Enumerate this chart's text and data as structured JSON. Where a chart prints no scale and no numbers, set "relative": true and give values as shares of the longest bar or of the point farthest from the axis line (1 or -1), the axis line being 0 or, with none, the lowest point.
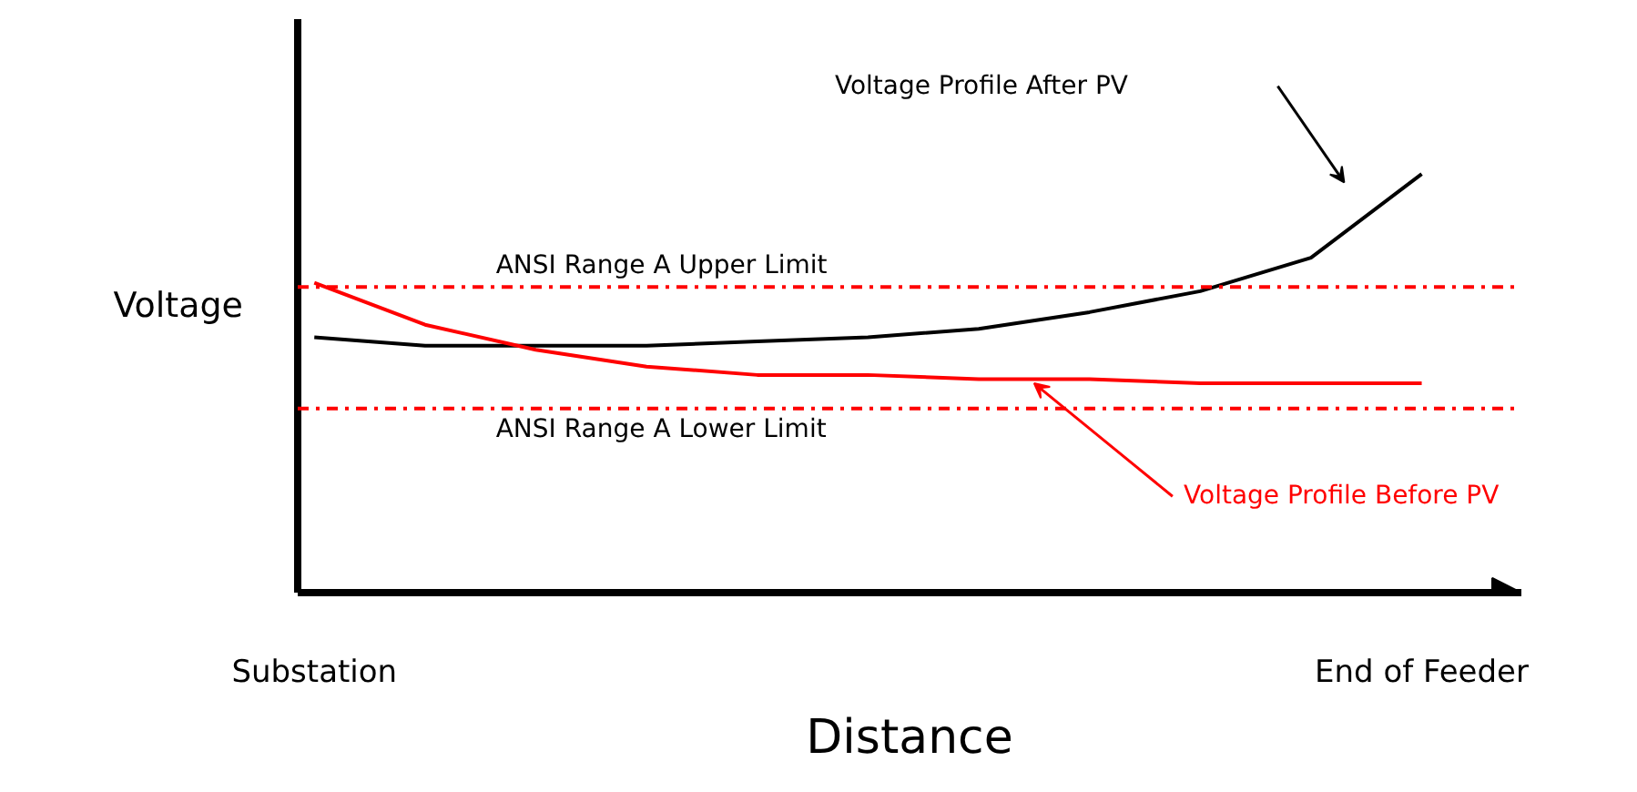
{
  "chart_data": {
    "type": "line",
    "relative": true,
    "xlabel": "Distance",
    "ylabel": "Voltage",
    "categories": [
      "Substation",
      null,
      null,
      null,
      null,
      null,
      null,
      null,
      null,
      null,
      "End of Feeder"
    ],
    "series": [
      {
        "name": "Voltage Profile After PV",
        "color": "#000000",
        "values": [
          0.61,
          0.59,
          0.59,
          0.59,
          0.6,
          0.61,
          0.63,
          0.67,
          0.72,
          0.8,
          1
        ]
      },
      {
        "name": "Voltage Profile Before PV",
        "color": "#ff0000",
        "values": [
          0.74,
          0.64,
          0.58,
          0.54,
          0.52,
          0.52,
          0.51,
          0.51,
          0.5,
          0.5,
          0.5
        ]
      }
    ],
    "ref_lines": [
      {
        "axis": "y",
        "value": 0.73,
        "label": "ANSI Range A Upper Limit",
        "color": "#ff0000",
        "line_style": "dashdot"
      },
      {
        "axis": "y",
        "value": 0.44,
        "label": "ANSI Range A Lower Limit",
        "color": "#ff0000",
        "line_style": "dashdot"
      }
    ]
  }
}
